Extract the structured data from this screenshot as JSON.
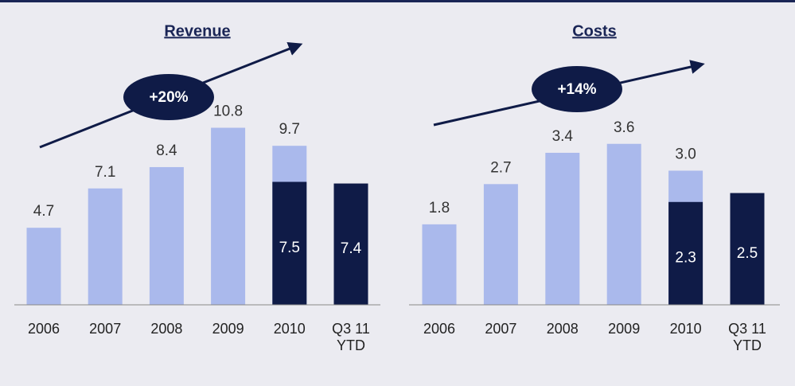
{
  "chart_data": [
    {
      "type": "bar",
      "title": "Revenue",
      "annotation": "+20%",
      "categories": [
        "2006",
        "2007",
        "2008",
        "2009",
        "2010",
        "Q3 11 YTD"
      ],
      "ylim": [
        0,
        15
      ],
      "series": [
        {
          "color": "#aab9ec",
          "values": [
            4.7,
            7.1,
            8.4,
            10.8,
            9.7,
            null
          ],
          "value_labels": [
            "4.7",
            "7.1",
            "8.4",
            "10.8",
            "9.7",
            null
          ],
          "label_position": "above"
        },
        {
          "color": "#0f1b47",
          "values": [
            null,
            null,
            null,
            null,
            7.5,
            7.4
          ],
          "value_labels": [
            null,
            null,
            null,
            null,
            "7.5",
            "7.4"
          ],
          "label_position": "inside"
        }
      ]
    },
    {
      "type": "bar",
      "title": "Costs",
      "annotation": "+14%",
      "categories": [
        "2006",
        "2007",
        "2008",
        "2009",
        "2010",
        "Q3 11 YTD"
      ],
      "ylim": [
        0,
        5.5
      ],
      "series": [
        {
          "color": "#aab9ec",
          "values": [
            1.8,
            2.7,
            3.4,
            3.6,
            3.0,
            null
          ],
          "value_labels": [
            "1.8",
            "2.7",
            "3.4",
            "3.6",
            "3.0",
            null
          ],
          "label_position": "above"
        },
        {
          "color": "#0f1b47",
          "values": [
            null,
            null,
            null,
            null,
            2.3,
            2.5
          ],
          "value_labels": [
            null,
            null,
            null,
            null,
            "2.3",
            "2.5"
          ],
          "label_position": "inside"
        }
      ]
    }
  ]
}
